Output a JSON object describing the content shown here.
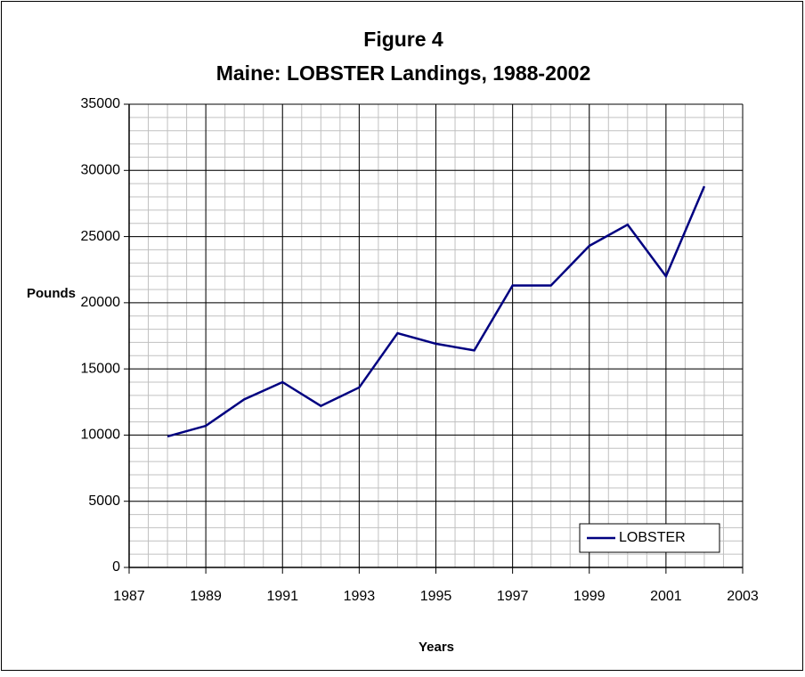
{
  "chart_data": {
    "type": "line",
    "title": "Figure 4",
    "subtitle": "Maine: LOBSTER Landings, 1988-2002",
    "x_label": "Years",
    "y_label": "Pounds",
    "x": [
      1988,
      1989,
      1990,
      1991,
      1992,
      1993,
      1994,
      1995,
      1996,
      1997,
      1998,
      1999,
      2000,
      2001,
      2002
    ],
    "series": [
      {
        "name": "LOBSTER",
        "color": "#000080",
        "values": [
          9900,
          10700,
          12700,
          14000,
          12200,
          13600,
          17700,
          16900,
          16400,
          21300,
          21300,
          24300,
          25900,
          22000,
          28800
        ]
      }
    ],
    "xlim": [
      1987,
      2003
    ],
    "xticks": [
      1987,
      1989,
      1991,
      1993,
      1995,
      1997,
      1999,
      2001,
      2003
    ],
    "ylim": [
      0,
      35000
    ],
    "yticks": [
      0,
      5000,
      10000,
      15000,
      20000,
      25000,
      30000,
      35000
    ],
    "grid": true,
    "legend": "lower right"
  }
}
